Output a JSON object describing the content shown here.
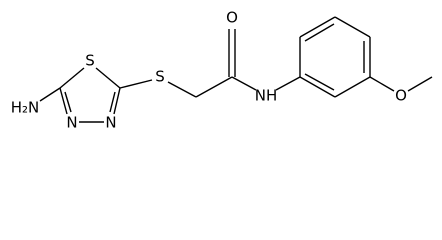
{
  "atoms": [
    "H₂N",
    "S",
    "N",
    "N",
    "S",
    "O",
    "NH",
    "O"
  ]
}
